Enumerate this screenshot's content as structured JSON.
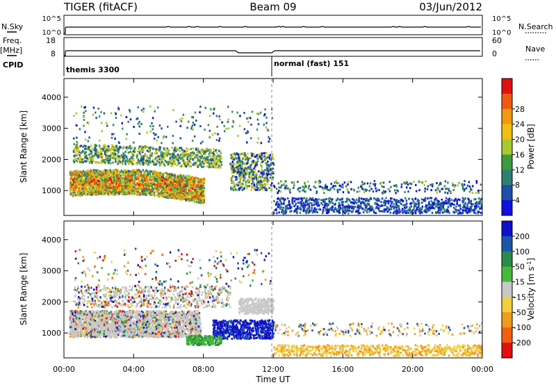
{
  "header": {
    "radar": "TIGER (fitACF)",
    "beam": "Beam 09",
    "date": "03/Jun/2012"
  },
  "top_panels": {
    "nsky_label": "N.Sky",
    "nsky_ticks": [
      "10^5",
      "10^0"
    ],
    "nsearch_label": "N.Search",
    "nsearch_ticks": [
      "10^5",
      "10^0"
    ],
    "freq_label_top": "Freq.",
    "freq_label_bottom": "[MHz]",
    "freq_ticks": [
      "18",
      "8"
    ],
    "nave_label": "Nave",
    "nave_ticks": [
      "60",
      "0"
    ],
    "cpid_label": "CPID",
    "cpid_modes": [
      {
        "name": "themis 3300",
        "start_hour": 0
      },
      {
        "name": "normal (fast) 151",
        "start_hour": 12
      }
    ]
  },
  "chart_data": [
    {
      "type": "heatmap",
      "title": "Power",
      "xlabel": "Time UT",
      "ylabel": "Slant Range [km]",
      "xlim": [
        0,
        24
      ],
      "ylim": [
        200,
        4600
      ],
      "y_ticks": [
        1000,
        2000,
        3000,
        4000
      ],
      "colorbar": {
        "label": "Power [dB]",
        "ticks": [
          "4",
          "8",
          "12",
          "16",
          "20",
          "24",
          "28"
        ],
        "colors": [
          "#1010e0",
          "#1f4fa6",
          "#2f7f72",
          "#3e9a3e",
          "#a8c832",
          "#f0c010",
          "#f09a10",
          "#f05a10",
          "#e01010"
        ]
      },
      "features": [
        {
          "t0": 0.3,
          "t1": 7.8,
          "r0": 850,
          "r1": 1600,
          "level": "high (16-28 dB)"
        },
        {
          "t0": 0.5,
          "t1": 8.5,
          "r0": 1600,
          "r1": 2500,
          "level": "moderate (8-20 dB)"
        },
        {
          "t0": 10.5,
          "t1": 12.0,
          "r0": 1200,
          "r1": 2200,
          "level": "moderate (8-20 dB)"
        },
        {
          "t0": 12.0,
          "t1": 24.0,
          "r0": 200,
          "r1": 1300,
          "level": "low (4-12 dB)"
        }
      ]
    },
    {
      "type": "heatmap",
      "title": "Velocity",
      "xlabel": "Time UT",
      "ylabel": "Slant Range [km]",
      "xlim": [
        0,
        24
      ],
      "ylim": [
        200,
        4600
      ],
      "x_ticks": [
        "00:00",
        "04:00",
        "08:00",
        "12:00",
        "16:00",
        "20:00",
        "00:00"
      ],
      "y_ticks": [
        1000,
        2000,
        3000,
        4000
      ],
      "colorbar": {
        "label": "Velocity [m s^-1]",
        "ticks": [
          "200",
          "100",
          "50",
          "15",
          "-15",
          "-50",
          "-100",
          "-200"
        ],
        "colors": [
          "#1010c8",
          "#1a56a8",
          "#2a8a4a",
          "#48b838",
          "#c8c8c8",
          "#f0d040",
          "#f09a20",
          "#f06010",
          "#e01010"
        ]
      },
      "features": [
        {
          "t0": 0.3,
          "t1": 7.5,
          "r0": 900,
          "r1": 1700,
          "level": "near zero (grey)"
        },
        {
          "t0": 9.0,
          "t1": 12.0,
          "r0": 800,
          "r1": 1300,
          "level": "positive (blue)"
        },
        {
          "t0": 7.0,
          "t1": 9.0,
          "r0": 600,
          "r1": 900,
          "level": "positive (green)"
        },
        {
          "t0": 12.0,
          "t1": 24.0,
          "r0": 200,
          "r1": 400,
          "level": "negative (orange)"
        }
      ]
    }
  ]
}
